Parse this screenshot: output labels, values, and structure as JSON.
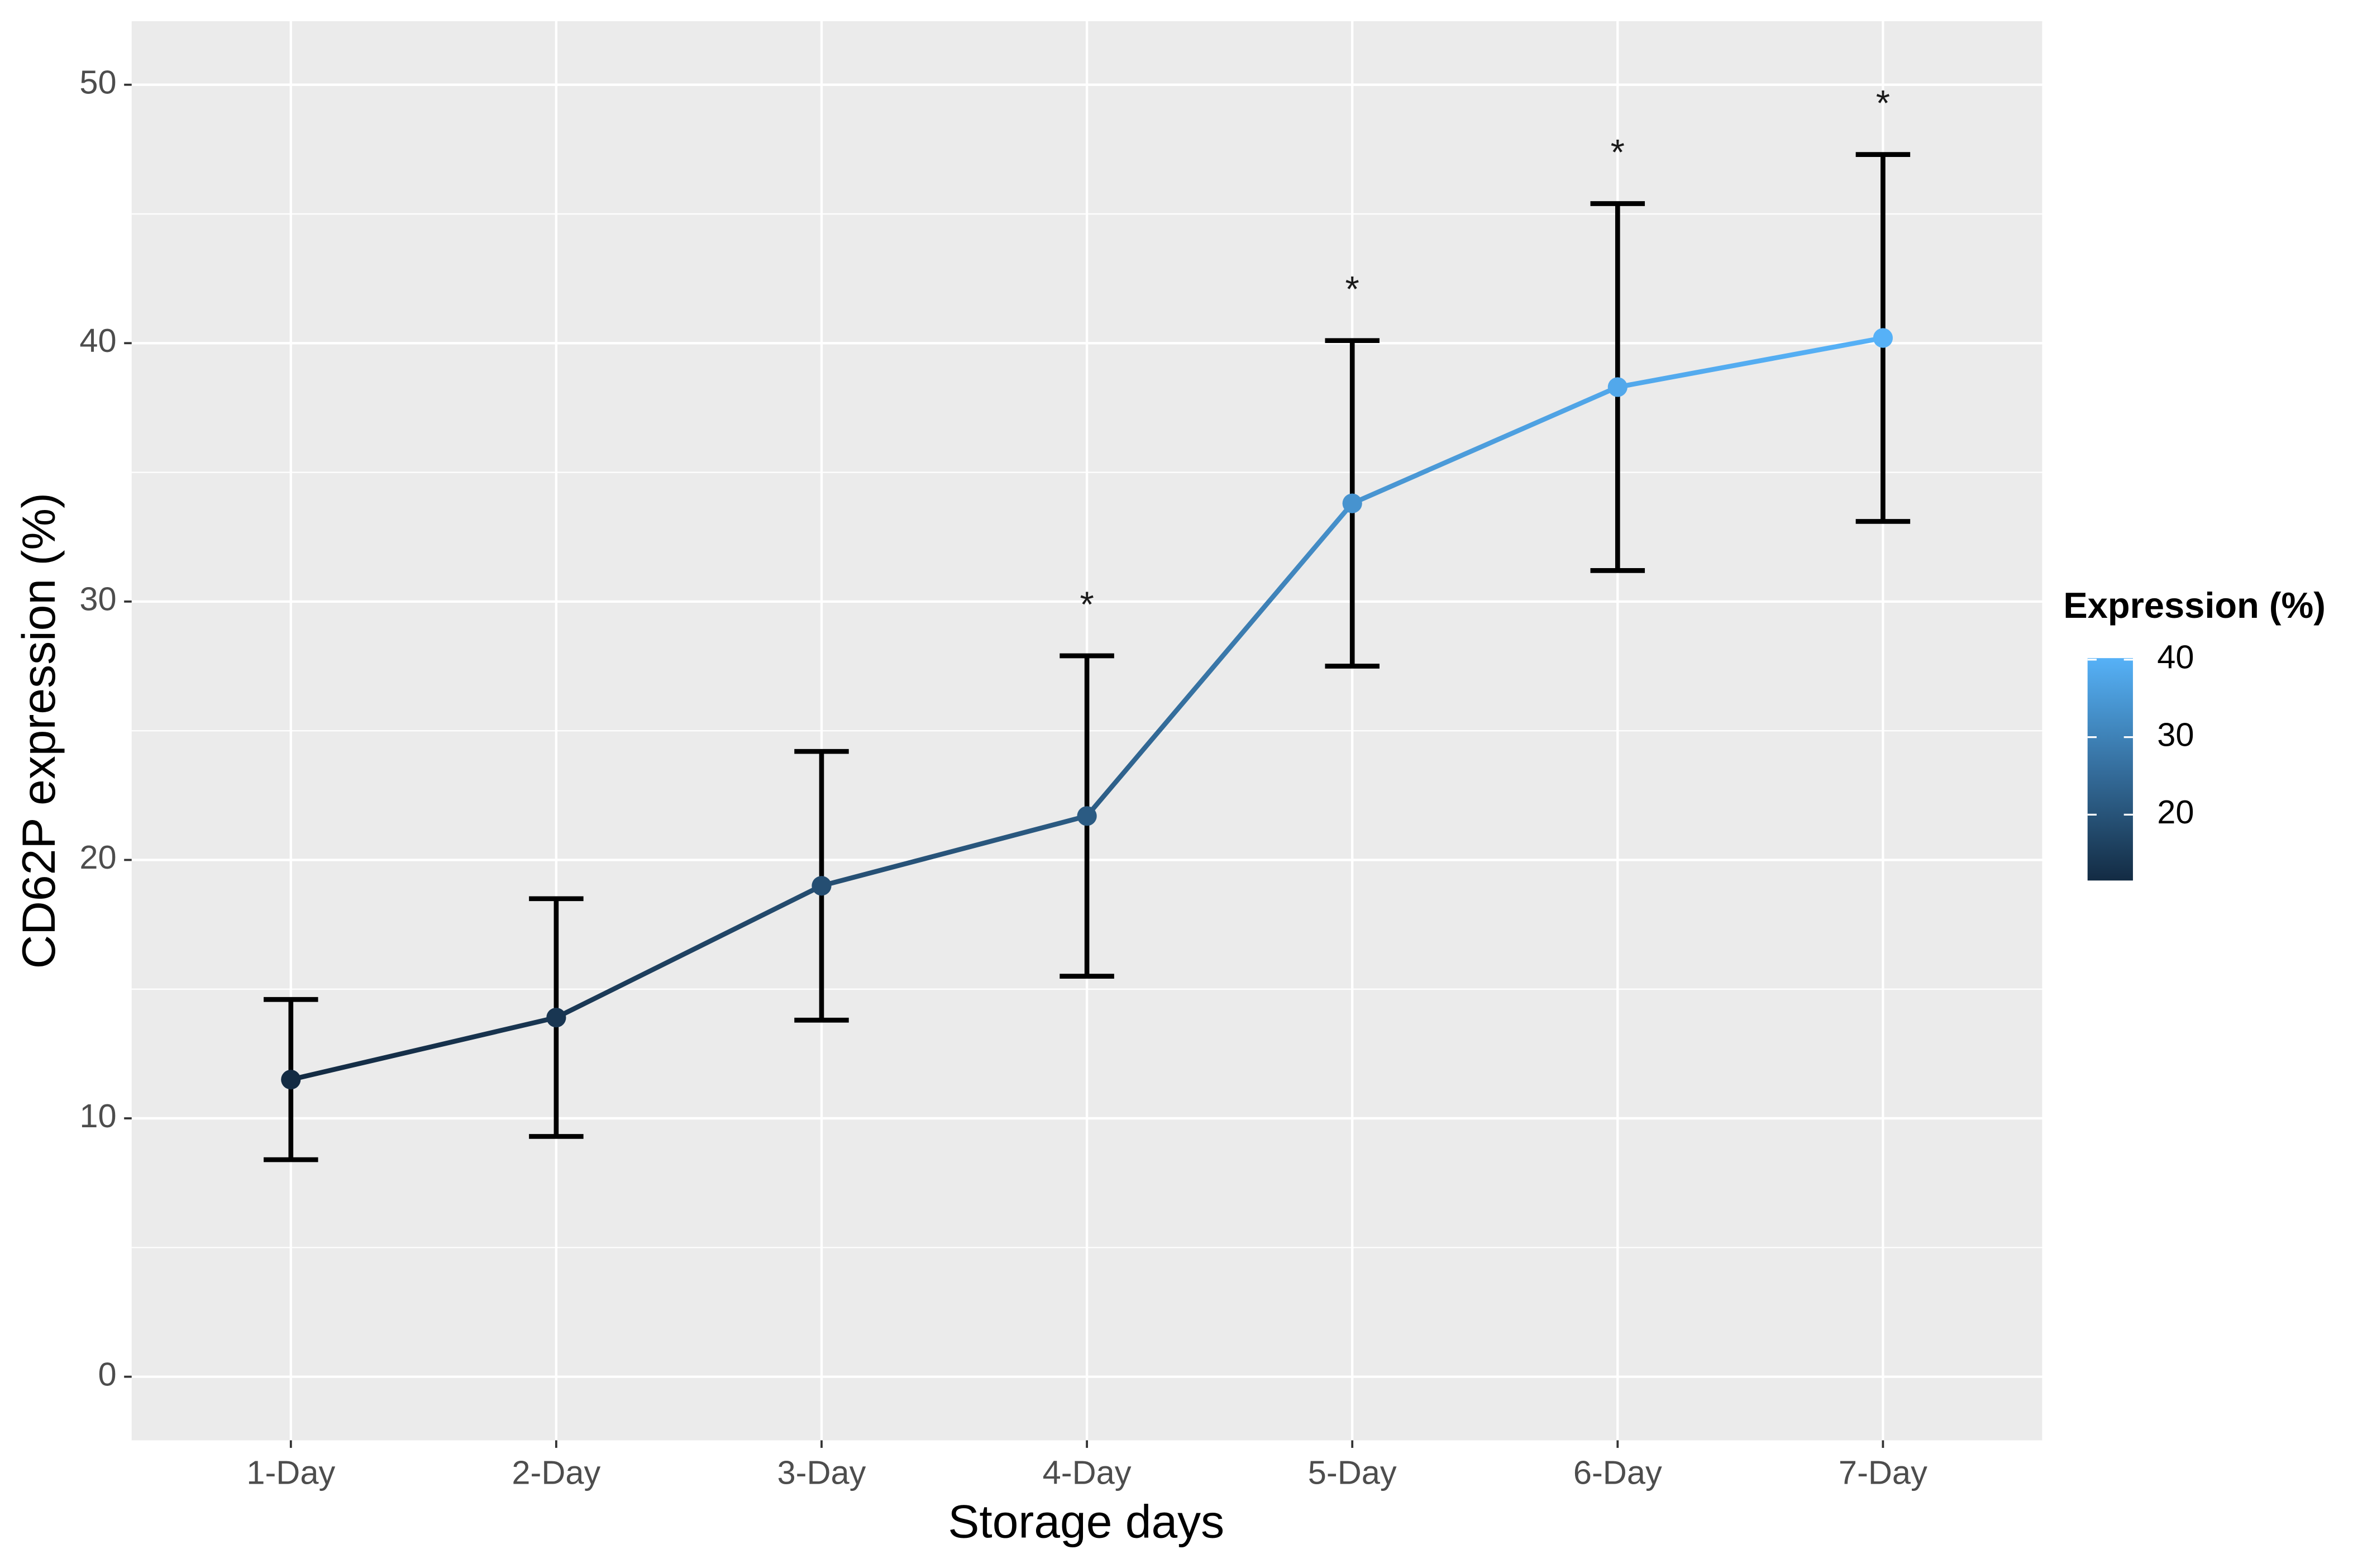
{
  "chart_data": {
    "type": "line",
    "x_label": "Storage days",
    "y_label": "CD62P expression (%)",
    "categories": [
      "1-Day",
      "2-Day",
      "3-Day",
      "4-Day",
      "5-Day",
      "6-Day",
      "7-Day"
    ],
    "series": [
      {
        "values": [
          11.5,
          13.9,
          19.0,
          21.7,
          33.8,
          38.3,
          40.2
        ],
        "errors": [
          3.1,
          4.6,
          5.2,
          6.2,
          6.3,
          7.1,
          7.1
        ],
        "significance": [
          null,
          null,
          null,
          "*",
          "*",
          "*",
          "*"
        ]
      }
    ],
    "ylim": [
      -2.46,
      52.46
    ],
    "yticks": [
      0,
      10,
      20,
      30,
      40,
      50
    ],
    "grid": true,
    "error_bar_color": "#000000",
    "colorbar": {
      "title": "Expression (%)",
      "lim": [
        11.5,
        40.2
      ],
      "ticks": [
        20,
        30,
        40
      ],
      "low": "#132B43",
      "high": "#56B1F7"
    }
  }
}
